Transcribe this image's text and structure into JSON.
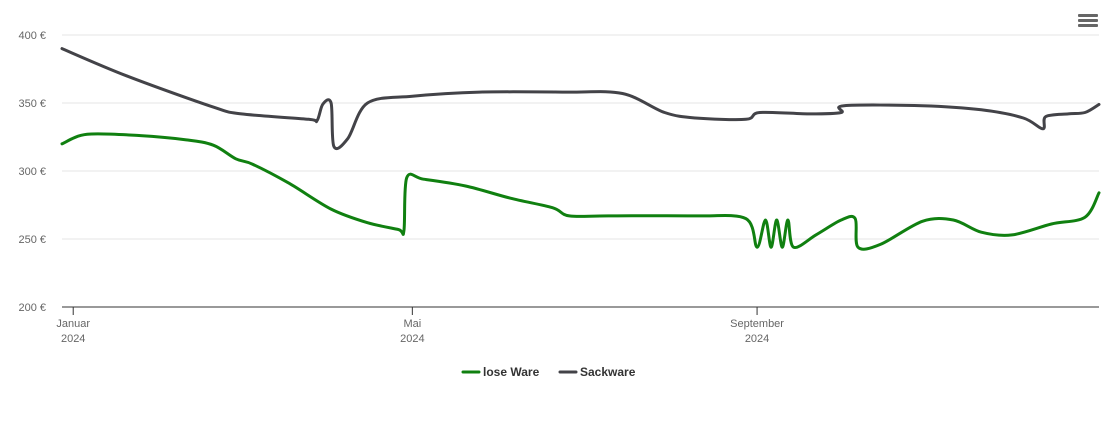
{
  "menu": {
    "icon": "hamburger-menu-icon"
  },
  "chart_data": {
    "type": "line",
    "title": "",
    "xlabel": "",
    "ylabel": "",
    "ylim": [
      200,
      400
    ],
    "y_ticks": [
      "200 €",
      "250 €",
      "300 €",
      "350 €",
      "400 €"
    ],
    "y_tick_values": [
      200,
      250,
      300,
      350,
      400
    ],
    "x_range": [
      "2023-12-28",
      "2025-01-01"
    ],
    "x_ticks": [
      {
        "date": "2024-01-01",
        "line1": "Januar",
        "line2": "2024"
      },
      {
        "date": "2024-05-01",
        "line1": "Mai",
        "line2": "2024"
      },
      {
        "date": "2024-09-01",
        "line1": "September",
        "line2": "2024"
      }
    ],
    "grid": true,
    "legend_position": "bottom-center",
    "series": [
      {
        "name": "lose Ware",
        "color": "#108010",
        "points": [
          [
            "2023-12-28",
            320
          ],
          [
            "2024-01-06",
            327
          ],
          [
            "2024-01-25",
            326
          ],
          [
            "2024-02-10",
            323
          ],
          [
            "2024-02-20",
            319
          ],
          [
            "2024-02-28",
            309
          ],
          [
            "2024-03-05",
            305
          ],
          [
            "2024-03-18",
            291
          ],
          [
            "2024-04-02",
            272
          ],
          [
            "2024-04-15",
            262
          ],
          [
            "2024-04-26",
            257
          ],
          [
            "2024-04-28",
            256
          ],
          [
            "2024-04-29",
            295
          ],
          [
            "2024-05-05",
            294
          ],
          [
            "2024-05-20",
            289
          ],
          [
            "2024-06-05",
            280
          ],
          [
            "2024-06-20",
            273
          ],
          [
            "2024-06-26",
            267
          ],
          [
            "2024-07-10",
            267
          ],
          [
            "2024-08-10",
            267
          ],
          [
            "2024-08-28",
            265
          ],
          [
            "2024-09-01",
            244
          ],
          [
            "2024-09-04",
            264
          ],
          [
            "2024-09-06",
            244
          ],
          [
            "2024-09-08",
            264
          ],
          [
            "2024-09-10",
            244
          ],
          [
            "2024-09-12",
            264
          ],
          [
            "2024-09-14",
            244
          ],
          [
            "2024-09-22",
            253
          ],
          [
            "2024-10-01",
            264
          ],
          [
            "2024-10-06",
            265
          ],
          [
            "2024-10-07",
            244
          ],
          [
            "2024-10-15",
            246
          ],
          [
            "2024-10-30",
            263
          ],
          [
            "2024-11-10",
            264
          ],
          [
            "2024-11-20",
            255
          ],
          [
            "2024-12-01",
            253
          ],
          [
            "2024-12-15",
            261
          ],
          [
            "2024-12-27",
            266
          ],
          [
            "2025-01-01",
            284
          ]
        ]
      },
      {
        "name": "Sackware",
        "color": "#434348",
        "points": [
          [
            "2023-12-28",
            390
          ],
          [
            "2024-01-20",
            370
          ],
          [
            "2024-02-20",
            347
          ],
          [
            "2024-03-01",
            342
          ],
          [
            "2024-03-25",
            338
          ],
          [
            "2024-03-28",
            337
          ],
          [
            "2024-03-30",
            349
          ],
          [
            "2024-04-02",
            350
          ],
          [
            "2024-04-03",
            318
          ],
          [
            "2024-04-08",
            324
          ],
          [
            "2024-04-15",
            350
          ],
          [
            "2024-05-01",
            355
          ],
          [
            "2024-05-25",
            358
          ],
          [
            "2024-06-25",
            358
          ],
          [
            "2024-07-15",
            357
          ],
          [
            "2024-07-30",
            343
          ],
          [
            "2024-08-10",
            339
          ],
          [
            "2024-08-28",
            338
          ],
          [
            "2024-09-02",
            343
          ],
          [
            "2024-09-20",
            342
          ],
          [
            "2024-10-01",
            343
          ],
          [
            "2024-10-02",
            348
          ],
          [
            "2024-10-30",
            348
          ],
          [
            "2024-11-20",
            345
          ],
          [
            "2024-12-05",
            339
          ],
          [
            "2024-12-12",
            331
          ],
          [
            "2024-12-13",
            340
          ],
          [
            "2024-12-21",
            342
          ],
          [
            "2024-12-27",
            343
          ],
          [
            "2025-01-01",
            349
          ]
        ]
      }
    ]
  }
}
